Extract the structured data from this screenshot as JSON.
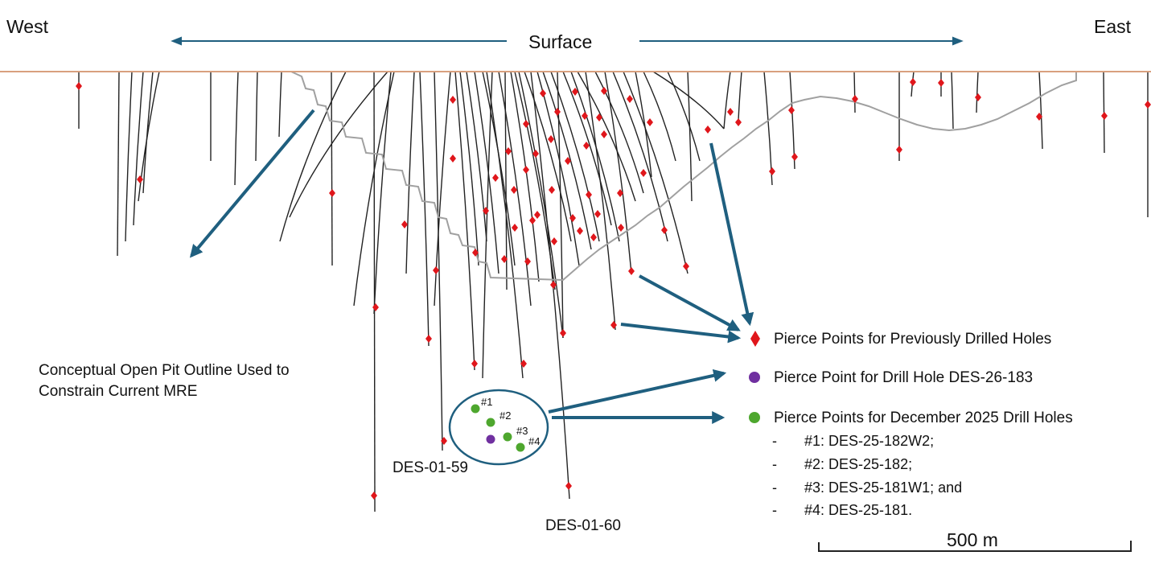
{
  "labels": {
    "west": "West",
    "east": "East",
    "surface": "Surface",
    "pit_outline": "Conceptual Open Pit Outline Used to Constrain Current MRE",
    "pit_outline_line1": "Conceptual Open Pit Outline Used to",
    "pit_outline_line2": "Constrain Current MRE",
    "hole_59": "DES-01-59",
    "hole_60": "DES-01-60",
    "points": [
      "#1",
      "#2",
      "#3",
      "#4"
    ]
  },
  "legend": {
    "items": [
      {
        "symbol": "red-diamond",
        "label": "Pierce Points for Previously Drilled Holes",
        "color": "#e0161b"
      },
      {
        "symbol": "purple-circle",
        "label": "Pierce Point for Drill Hole DES-26-183",
        "color": "#7030a0"
      },
      {
        "symbol": "green-circle",
        "label": "Pierce Points for December 2025 Drill Holes",
        "color": "#4ea72e"
      }
    ],
    "sub_items": [
      {
        "dash": "-",
        "text": "#1: DES-25-182W2;"
      },
      {
        "dash": "-",
        "text": "#2: DES-25-182;"
      },
      {
        "dash": "-",
        "text": "#3: DES-25-181W1; and"
      },
      {
        "dash": "-",
        "text": "#4: DES-25-181."
      }
    ]
  },
  "scale_bar": {
    "label": "500 m",
    "value_m": 500
  },
  "colors": {
    "arrow": "#1f5f7f",
    "surface": "#d9a07e",
    "pit": "#a0a0a0",
    "hole": "#222222"
  }
}
